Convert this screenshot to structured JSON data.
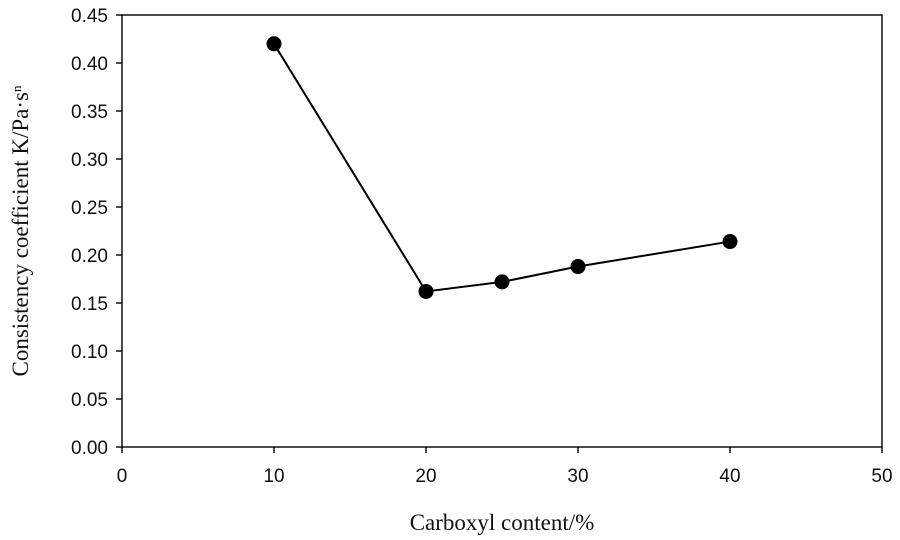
{
  "chart_data": {
    "type": "line",
    "title": "",
    "xlabel": "Carboxyl content/%",
    "ylabel": "Consistency coefficient K/Pa·s",
    "ylabel_superscript": "n",
    "xlim": [
      0,
      50
    ],
    "ylim": [
      0,
      0.45
    ],
    "x_ticks": [
      "0",
      "10",
      "20",
      "30",
      "40",
      "50"
    ],
    "y_ticks": [
      "0.00",
      "0.05",
      "0.10",
      "0.15",
      "0.20",
      "0.25",
      "0.30",
      "0.35",
      "0.40",
      "0.45"
    ],
    "grid": false,
    "legend": "none",
    "series": [
      {
        "x": [
          10,
          20,
          25,
          30,
          40
        ],
        "y": [
          0.42,
          0.162,
          0.172,
          0.188,
          0.214
        ],
        "color": "#000000",
        "marker": "filled-circle"
      }
    ]
  }
}
